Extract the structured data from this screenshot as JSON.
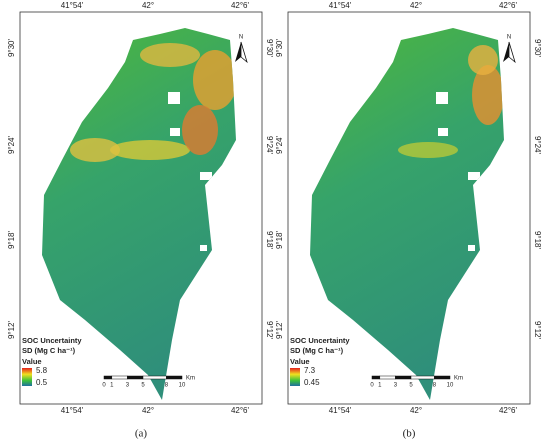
{
  "grid_labels": {
    "top": [
      "41°54'",
      "42°",
      "42°6'"
    ],
    "left": [
      "9°30'",
      "9°24'",
      "9°18'",
      "9°12'"
    ]
  },
  "north": "N",
  "scale_bar": {
    "ticks": [
      0,
      1,
      3,
      5,
      8,
      10
    ],
    "unit": "Km"
  },
  "panels": [
    {
      "caption": "(a)",
      "legend": {
        "title": "SOC Uncertainty",
        "subtitle": "SD (Mg C ha⁻¹)",
        "heading": "Value",
        "max": 5.8,
        "min": 0.5
      }
    },
    {
      "caption": "(b)",
      "legend": {
        "title": "SOC Uncertainty",
        "subtitle": "SD (Mg C ha⁻¹)",
        "heading": "Value",
        "max": 7.3,
        "min": 0.45
      }
    }
  ]
}
